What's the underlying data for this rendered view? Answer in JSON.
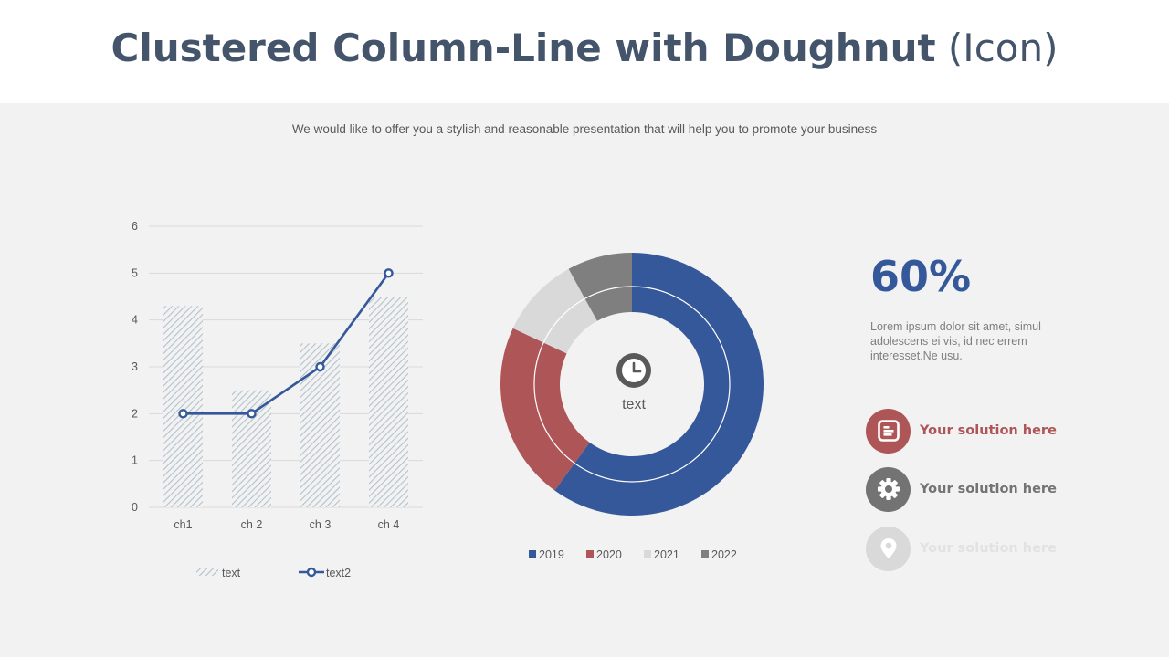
{
  "header": {
    "title_bold": "Clustered Column-Line with Doughnut",
    "title_light": "(Icon)",
    "subtitle": "We would like to offer you a stylish and reasonable presentation that will help you to promote your business"
  },
  "chart_data": [
    {
      "type": "bar",
      "categories": [
        "ch1",
        "ch 2",
        "ch 3",
        "ch 4"
      ],
      "series": [
        {
          "name": "text",
          "type": "bar",
          "values": [
            4.3,
            2.5,
            3.5,
            4.5
          ],
          "color": "#b3c2cc"
        },
        {
          "name": "text2",
          "type": "line",
          "values": [
            2,
            2,
            3,
            5
          ],
          "color": "#34589a"
        }
      ],
      "ylim": [
        0,
        6
      ],
      "yticks": [
        0,
        1,
        2,
        3,
        4,
        5,
        6
      ],
      "grid": true,
      "legend": "bottom"
    },
    {
      "type": "pie",
      "style": "doughnut",
      "center_label": "text",
      "center_icon": "clock-icon",
      "labels": [
        "2019",
        "2020",
        "2021",
        "2022"
      ],
      "values": [
        60,
        22,
        10,
        8
      ],
      "colors": [
        "#34589a",
        "#ae5557",
        "#d9d9d9",
        "#7f7f7f"
      ],
      "legend": "bottom"
    }
  ],
  "side": {
    "percent": "60%",
    "description": "Lorem ipsum dolor sit amet, simul adolescens ei vis, id nec errem interesset.Ne usu.",
    "solutions": [
      {
        "label": "Your solution here",
        "icon": "document-icon",
        "color": "#ae5557"
      },
      {
        "label": "Your solution here",
        "icon": "gear-icon",
        "color": "#737373"
      },
      {
        "label": "Your solution here",
        "icon": "location-pin-icon",
        "color": "#d9d9d9"
      }
    ]
  }
}
